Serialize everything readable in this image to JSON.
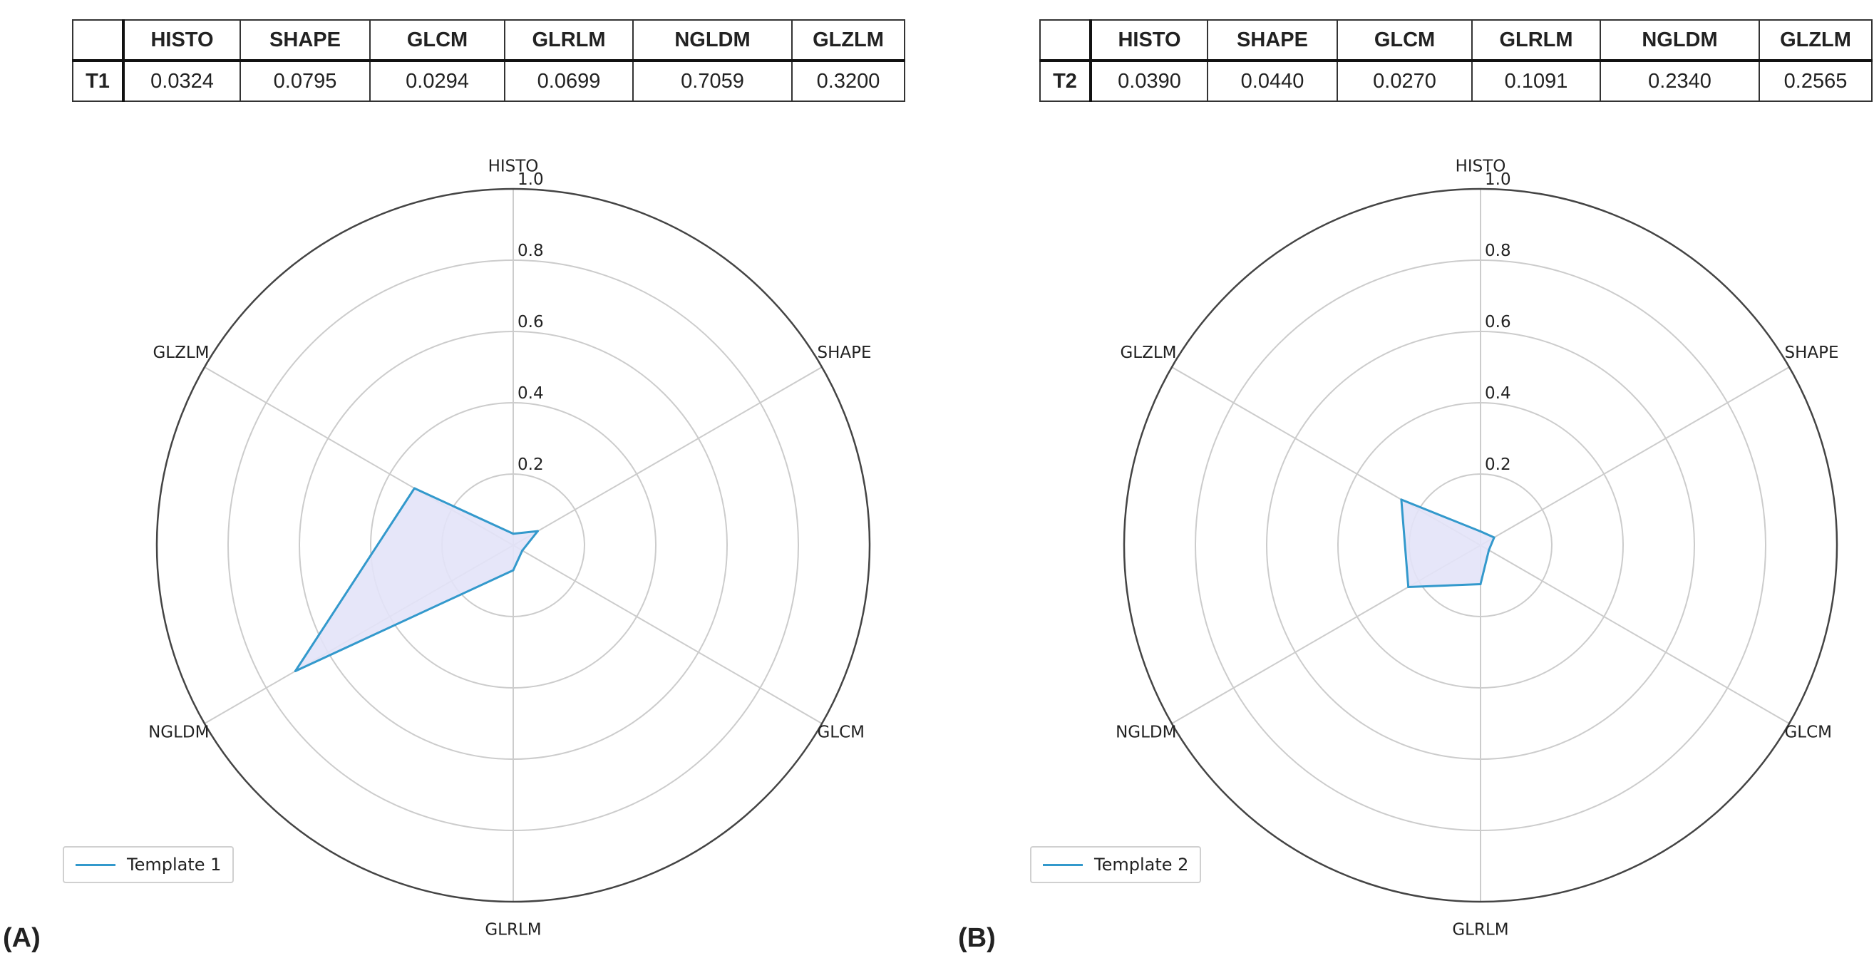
{
  "columns": [
    "HISTO",
    "SHAPE",
    "GLCM",
    "GLRLM",
    "NGLDM",
    "GLZLM"
  ],
  "panels": [
    {
      "label": "(A)",
      "row_label": "T1",
      "values_text": [
        "0.0324",
        "0.0795",
        "0.0294",
        "0.0699",
        "0.7059",
        "0.3200"
      ],
      "legend": "Template 1"
    },
    {
      "label": "(B)",
      "row_label": "T2",
      "values_text": [
        "0.0390",
        "0.0440",
        "0.0270",
        "0.1091",
        "0.2340",
        "0.2565"
      ],
      "legend": "Template 2"
    }
  ],
  "chart_data": [
    {
      "type": "radar",
      "categories": [
        "HISTO",
        "SHAPE",
        "GLCM",
        "GLRLM",
        "NGLDM",
        "GLZLM"
      ],
      "series": [
        {
          "name": "Template 1",
          "values": [
            0.0324,
            0.0795,
            0.0294,
            0.0699,
            0.7059,
            0.32
          ]
        }
      ],
      "rlim": [
        0,
        1.0
      ],
      "rticks": [
        "0.2",
        "0.4",
        "0.6",
        "0.8",
        "1.0"
      ],
      "grid": true,
      "legend_position": "bottom-left",
      "colors": {
        "line": "#3399cc",
        "fill": "#e3e3f8",
        "grid": "#cccccc",
        "outer": "#444444"
      }
    },
    {
      "type": "radar",
      "categories": [
        "HISTO",
        "SHAPE",
        "GLCM",
        "GLRLM",
        "NGLDM",
        "GLZLM"
      ],
      "series": [
        {
          "name": "Template 2",
          "values": [
            0.039,
            0.044,
            0.027,
            0.1091,
            0.234,
            0.2565
          ]
        }
      ],
      "rlim": [
        0,
        1.0
      ],
      "rticks": [
        "0.2",
        "0.4",
        "0.6",
        "0.8",
        "1.0"
      ],
      "grid": true,
      "legend_position": "bottom-left",
      "colors": {
        "line": "#3399cc",
        "fill": "#e3e3f8",
        "grid": "#cccccc",
        "outer": "#444444"
      }
    }
  ]
}
